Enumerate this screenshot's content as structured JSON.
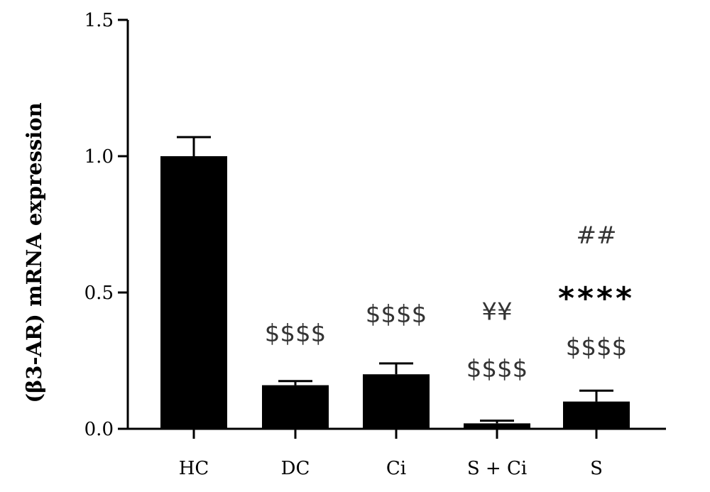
{
  "chart_data": {
    "type": "bar",
    "title": "",
    "xlabel": "",
    "ylabel": "(β3-AR) mRNA expression",
    "ylim": [
      0,
      1.5
    ],
    "yticks": [
      0.0,
      0.5,
      1.0,
      1.5
    ],
    "ytick_labels": [
      "0.0",
      "0.5",
      "1.0",
      "1.5"
    ],
    "categories": [
      "HC",
      "DC",
      "Ci",
      "S + Ci",
      "S"
    ],
    "values": [
      1.0,
      0.16,
      0.2,
      0.02,
      0.1
    ],
    "errors": [
      0.07,
      0.015,
      0.04,
      0.01,
      0.04
    ],
    "bar_color": "#000000",
    "annotations": [
      {
        "category": "DC",
        "text": "$$$$",
        "y": 0.32,
        "style": "sig",
        "color": "#333333"
      },
      {
        "category": "Ci",
        "text": "$$$$",
        "y": 0.39,
        "style": "sig",
        "color": "#333333"
      },
      {
        "category": "S + Ci",
        "text": "$$$$",
        "y": 0.19,
        "style": "sig",
        "color": "#333333"
      },
      {
        "category": "S + Ci",
        "text": "¥¥",
        "y": 0.4,
        "style": "sig",
        "color": "#333333"
      },
      {
        "category": "S",
        "text": "$$$$",
        "y": 0.27,
        "style": "sig",
        "color": "#333333"
      },
      {
        "category": "S",
        "text": "****",
        "y": 0.44,
        "style": "stars",
        "color": "#000000"
      },
      {
        "category": "S",
        "text": "##",
        "y": 0.68,
        "style": "sig",
        "color": "#333333"
      }
    ]
  }
}
